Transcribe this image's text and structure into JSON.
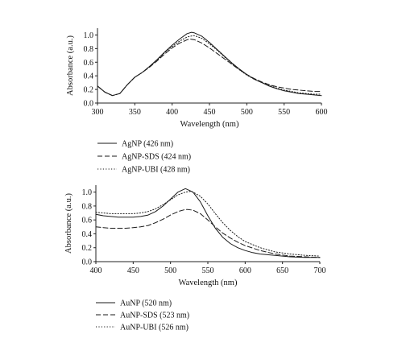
{
  "chart_data": [
    {
      "type": "line",
      "xlabel": "Wavelength (nm)",
      "ylabel": "Absorbance (a.u.)",
      "xlim": [
        300,
        600
      ],
      "ylim": [
        0,
        1.1
      ],
      "xticks": [
        "300",
        "350",
        "400",
        "450",
        "500",
        "550",
        "600"
      ],
      "yticks": [
        "0.0",
        "0.2",
        "0.4",
        "0.6",
        "0.8",
        "1.0"
      ],
      "grid": false,
      "legend_placement": "below",
      "series": [
        {
          "name": "AgNP (426 nm)",
          "style": "solid",
          "x": [
            300,
            310,
            320,
            330,
            340,
            350,
            360,
            370,
            380,
            390,
            400,
            410,
            420,
            426,
            430,
            440,
            450,
            460,
            470,
            480,
            490,
            500,
            510,
            520,
            530,
            540,
            550,
            560,
            570,
            580,
            590,
            600
          ],
          "y": [
            0.25,
            0.16,
            0.11,
            0.14,
            0.27,
            0.38,
            0.45,
            0.54,
            0.64,
            0.75,
            0.85,
            0.94,
            1.02,
            1.04,
            1.03,
            0.98,
            0.89,
            0.79,
            0.69,
            0.59,
            0.5,
            0.42,
            0.35,
            0.3,
            0.25,
            0.21,
            0.18,
            0.16,
            0.14,
            0.13,
            0.12,
            0.11
          ]
        },
        {
          "name": "AgNP-SDS (424 nm)",
          "style": "dashed",
          "x": [
            300,
            310,
            320,
            330,
            340,
            350,
            360,
            370,
            380,
            390,
            400,
            410,
            420,
            424,
            430,
            440,
            450,
            460,
            470,
            480,
            490,
            500,
            510,
            520,
            530,
            540,
            550,
            560,
            570,
            580,
            590,
            600
          ],
          "y": [
            0.25,
            0.16,
            0.11,
            0.14,
            0.27,
            0.38,
            0.45,
            0.53,
            0.62,
            0.72,
            0.81,
            0.88,
            0.93,
            0.94,
            0.93,
            0.88,
            0.81,
            0.73,
            0.65,
            0.57,
            0.49,
            0.42,
            0.36,
            0.31,
            0.27,
            0.24,
            0.22,
            0.2,
            0.19,
            0.18,
            0.17,
            0.17
          ]
        },
        {
          "name": "AgNP-UBI (428 nm)",
          "style": "dotted",
          "x": [
            300,
            310,
            320,
            330,
            340,
            350,
            360,
            370,
            380,
            390,
            400,
            410,
            420,
            428,
            430,
            440,
            450,
            460,
            470,
            480,
            490,
            500,
            510,
            520,
            530,
            540,
            550,
            560,
            570,
            580,
            590,
            600
          ],
          "y": [
            0.25,
            0.16,
            0.11,
            0.14,
            0.27,
            0.38,
            0.45,
            0.54,
            0.63,
            0.74,
            0.83,
            0.91,
            0.97,
            0.99,
            0.99,
            0.95,
            0.87,
            0.78,
            0.68,
            0.58,
            0.49,
            0.41,
            0.35,
            0.3,
            0.26,
            0.22,
            0.19,
            0.17,
            0.15,
            0.14,
            0.13,
            0.13
          ]
        }
      ]
    },
    {
      "type": "line",
      "xlabel": "Wavelength (nm)",
      "ylabel": "Absorbance (a.u.)",
      "xlim": [
        400,
        700
      ],
      "ylim": [
        0,
        1.1
      ],
      "xticks": [
        "400",
        "450",
        "500",
        "550",
        "600",
        "650",
        "700"
      ],
      "yticks": [
        "0.0",
        "0.2",
        "0.4",
        "0.6",
        "0.8",
        "1.0"
      ],
      "grid": false,
      "legend_placement": "below",
      "series": [
        {
          "name": "AuNP (520 nm)",
          "style": "solid",
          "x": [
            400,
            410,
            420,
            430,
            440,
            450,
            460,
            470,
            480,
            490,
            500,
            510,
            520,
            530,
            540,
            550,
            560,
            570,
            580,
            590,
            600,
            610,
            620,
            640,
            660,
            680,
            700
          ],
          "y": [
            0.68,
            0.66,
            0.65,
            0.64,
            0.64,
            0.64,
            0.65,
            0.67,
            0.72,
            0.8,
            0.9,
            1.0,
            1.05,
            1.0,
            0.86,
            0.66,
            0.48,
            0.35,
            0.26,
            0.2,
            0.16,
            0.13,
            0.11,
            0.09,
            0.07,
            0.06,
            0.06
          ]
        },
        {
          "name": "AuNP-SDS (523 nm)",
          "style": "dashed",
          "x": [
            400,
            410,
            420,
            430,
            440,
            450,
            460,
            470,
            480,
            490,
            500,
            510,
            520,
            523,
            530,
            540,
            550,
            560,
            570,
            580,
            590,
            600,
            620,
            640,
            660,
            680,
            700
          ],
          "y": [
            0.5,
            0.49,
            0.48,
            0.48,
            0.48,
            0.49,
            0.5,
            0.52,
            0.56,
            0.61,
            0.67,
            0.72,
            0.75,
            0.75,
            0.74,
            0.69,
            0.6,
            0.5,
            0.41,
            0.34,
            0.28,
            0.23,
            0.16,
            0.11,
            0.08,
            0.07,
            0.06
          ]
        },
        {
          "name": "AuNP-UBI (526 nm)",
          "style": "dotted",
          "x": [
            400,
            410,
            420,
            430,
            440,
            450,
            460,
            470,
            480,
            490,
            500,
            510,
            520,
            526,
            530,
            540,
            550,
            560,
            570,
            580,
            590,
            600,
            620,
            640,
            660,
            680,
            700
          ],
          "y": [
            0.71,
            0.7,
            0.69,
            0.69,
            0.69,
            0.69,
            0.7,
            0.72,
            0.76,
            0.82,
            0.89,
            0.96,
            1.0,
            1.01,
            1.0,
            0.94,
            0.83,
            0.69,
            0.56,
            0.45,
            0.36,
            0.29,
            0.2,
            0.14,
            0.11,
            0.09,
            0.08
          ]
        }
      ]
    }
  ]
}
